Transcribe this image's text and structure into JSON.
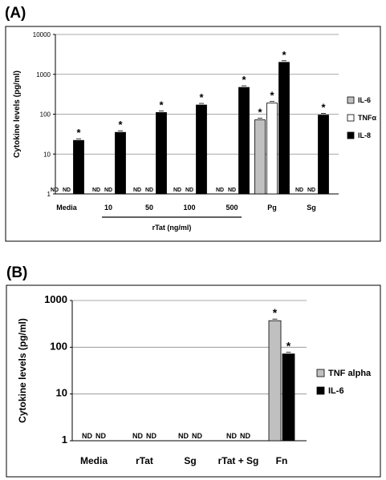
{
  "panels": {
    "a_label": "(A)",
    "b_label": "(B)"
  },
  "chart_data": [
    {
      "type": "bar",
      "panel": "(A)",
      "title": "",
      "ylabel": "Cytokine levels (pg/ml)",
      "xlabel": "rTat (ng/ml)",
      "y_scale": "log",
      "ylim": [
        1,
        10000
      ],
      "y_ticks": [
        "1",
        "10",
        "100",
        "1000",
        "10000"
      ],
      "grid": true,
      "legend_position": "right",
      "categories": [
        "Media",
        "10",
        "50",
        "100",
        "500",
        "Pg",
        "Sg"
      ],
      "group_bracket": {
        "label": "rTat (ng/ml)",
        "from": "10",
        "to": "500"
      },
      "series": [
        {
          "name": "IL-6",
          "color": "#c0c0c0",
          "values": [
            null,
            null,
            null,
            null,
            null,
            72,
            null
          ],
          "labels": [
            "ND",
            "ND",
            "ND",
            "ND",
            "ND",
            "",
            "ND"
          ]
        },
        {
          "name": "TNFα",
          "color": "#ffffff",
          "values": [
            null,
            null,
            null,
            null,
            null,
            190,
            null
          ],
          "labels": [
            "ND",
            "ND",
            "ND",
            "ND",
            "ND",
            "",
            "ND"
          ]
        },
        {
          "name": "IL-8",
          "color": "#000000",
          "values": [
            22,
            35,
            110,
            170,
            470,
            2000,
            95
          ],
          "labels": [
            "",
            "",
            "",
            "",
            "",
            "",
            ""
          ]
        }
      ],
      "significance": [
        "*"
      ]
    },
    {
      "type": "bar",
      "panel": "(B)",
      "title": "",
      "ylabel": "Cytokine levels (pg/ml)",
      "xlabel": "",
      "y_scale": "log",
      "ylim": [
        1,
        1000
      ],
      "y_ticks": [
        "1",
        "10",
        "100",
        "1000"
      ],
      "grid": true,
      "legend_position": "right",
      "categories": [
        "Media",
        "rTat",
        "Sg",
        "rTat + Sg",
        "Fn"
      ],
      "series": [
        {
          "name": "TNF alpha",
          "color": "#c0c0c0",
          "values": [
            null,
            null,
            null,
            null,
            370
          ],
          "labels": [
            "ND",
            "ND",
            "ND",
            "ND",
            ""
          ]
        },
        {
          "name": "IL-6",
          "color": "#000000",
          "values": [
            null,
            null,
            null,
            null,
            72
          ],
          "labels": [
            "ND",
            "ND",
            "ND",
            "ND",
            ""
          ]
        }
      ],
      "significance": [
        "*"
      ]
    }
  ]
}
